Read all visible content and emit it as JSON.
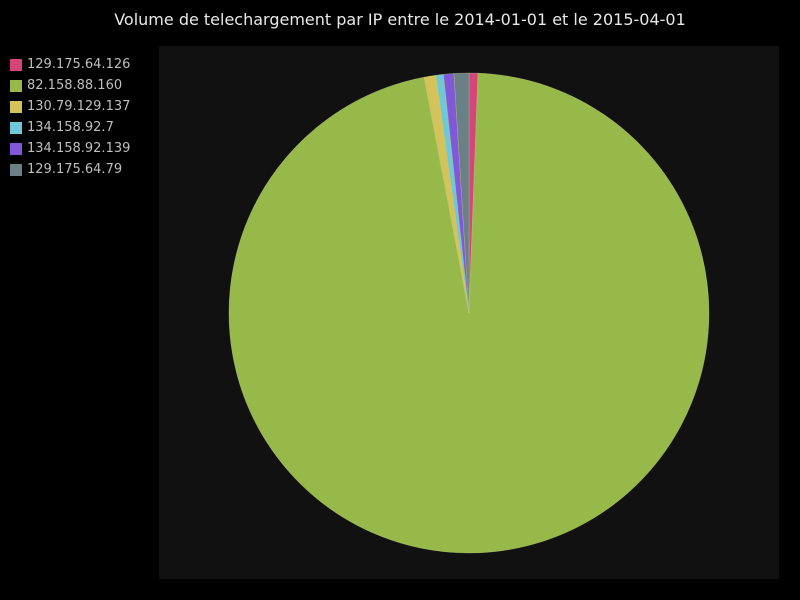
{
  "colors": {
    "background": "#000000",
    "plot_background": "#111111",
    "title_color": "#e8e8e8",
    "legend_text": "#bfbfbf"
  },
  "chart_data": {
    "type": "pie",
    "title": "Volume de telechargement par IP entre le 2014-01-01 et le 2015-04-01",
    "legend_position": "top-left",
    "start_angle_deg": 0,
    "direction": "clockwise",
    "slices": [
      {
        "label": "129.175.64.126",
        "value": 0.6,
        "color": "#d6457a"
      },
      {
        "label": "82.158.88.160",
        "value": 96.6,
        "color": "#97b94a"
      },
      {
        "label": "130.79.129.137",
        "value": 0.8,
        "color": "#d3c35a"
      },
      {
        "label": "134.158.92.7",
        "value": 0.5,
        "color": "#6fc8d8"
      },
      {
        "label": "134.158.92.139",
        "value": 0.7,
        "color": "#8058d8"
      },
      {
        "label": "129.175.64.79",
        "value": 1.0,
        "color": "#6a7f86"
      }
    ]
  }
}
